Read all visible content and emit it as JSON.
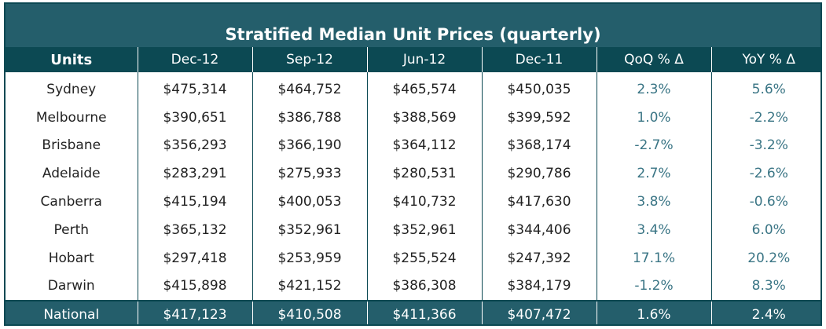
{
  "chart_data": {
    "type": "table",
    "title": "Stratified Median Unit Prices (quarterly)",
    "columns": [
      "Units",
      "Dec-12",
      "Sep-12",
      "Jun-12",
      "Dec-11",
      "QoQ % Δ",
      "YoY % Δ"
    ],
    "rows": [
      {
        "city": "Sydney",
        "dec12": "$475,314",
        "sep12": "$464,752",
        "jun12": "$465,574",
        "dec11": "$450,035",
        "qoq": "2.3%",
        "yoy": "5.6%"
      },
      {
        "city": "Melbourne",
        "dec12": "$390,651",
        "sep12": "$386,788",
        "jun12": "$388,569",
        "dec11": "$399,592",
        "qoq": "1.0%",
        "yoy": "-2.2%"
      },
      {
        "city": "Brisbane",
        "dec12": "$356,293",
        "sep12": "$366,190",
        "jun12": "$364,112",
        "dec11": "$368,174",
        "qoq": "-2.7%",
        "yoy": "-3.2%"
      },
      {
        "city": "Adelaide",
        "dec12": "$283,291",
        "sep12": "$275,933",
        "jun12": "$280,531",
        "dec11": "$290,786",
        "qoq": "2.7%",
        "yoy": "-2.6%"
      },
      {
        "city": "Canberra",
        "dec12": "$415,194",
        "sep12": "$400,053",
        "jun12": "$410,732",
        "dec11": "$417,630",
        "qoq": "3.8%",
        "yoy": "-0.6%"
      },
      {
        "city": "Perth",
        "dec12": "$365,132",
        "sep12": "$352,961",
        "jun12": "$352,961",
        "dec11": "$344,406",
        "qoq": "3.4%",
        "yoy": "6.0%"
      },
      {
        "city": "Hobart",
        "dec12": "$297,418",
        "sep12": "$253,959",
        "jun12": "$255,524",
        "dec11": "$247,392",
        "qoq": "17.1%",
        "yoy": "20.2%"
      },
      {
        "city": "Darwin",
        "dec12": "$415,898",
        "sep12": "$421,152",
        "jun12": "$386,308",
        "dec11": "$384,179",
        "qoq": "-1.2%",
        "yoy": "8.3%"
      }
    ],
    "total": {
      "city": "National",
      "dec12": "$417,123",
      "sep12": "$410,508",
      "jun12": "$411,366",
      "dec11": "$407,472",
      "qoq": "1.6%",
      "yoy": "2.4%"
    }
  },
  "colors": {
    "header_dark": "#0c4953",
    "title_teal": "#245e6b",
    "percent_text": "#3a7585"
  }
}
